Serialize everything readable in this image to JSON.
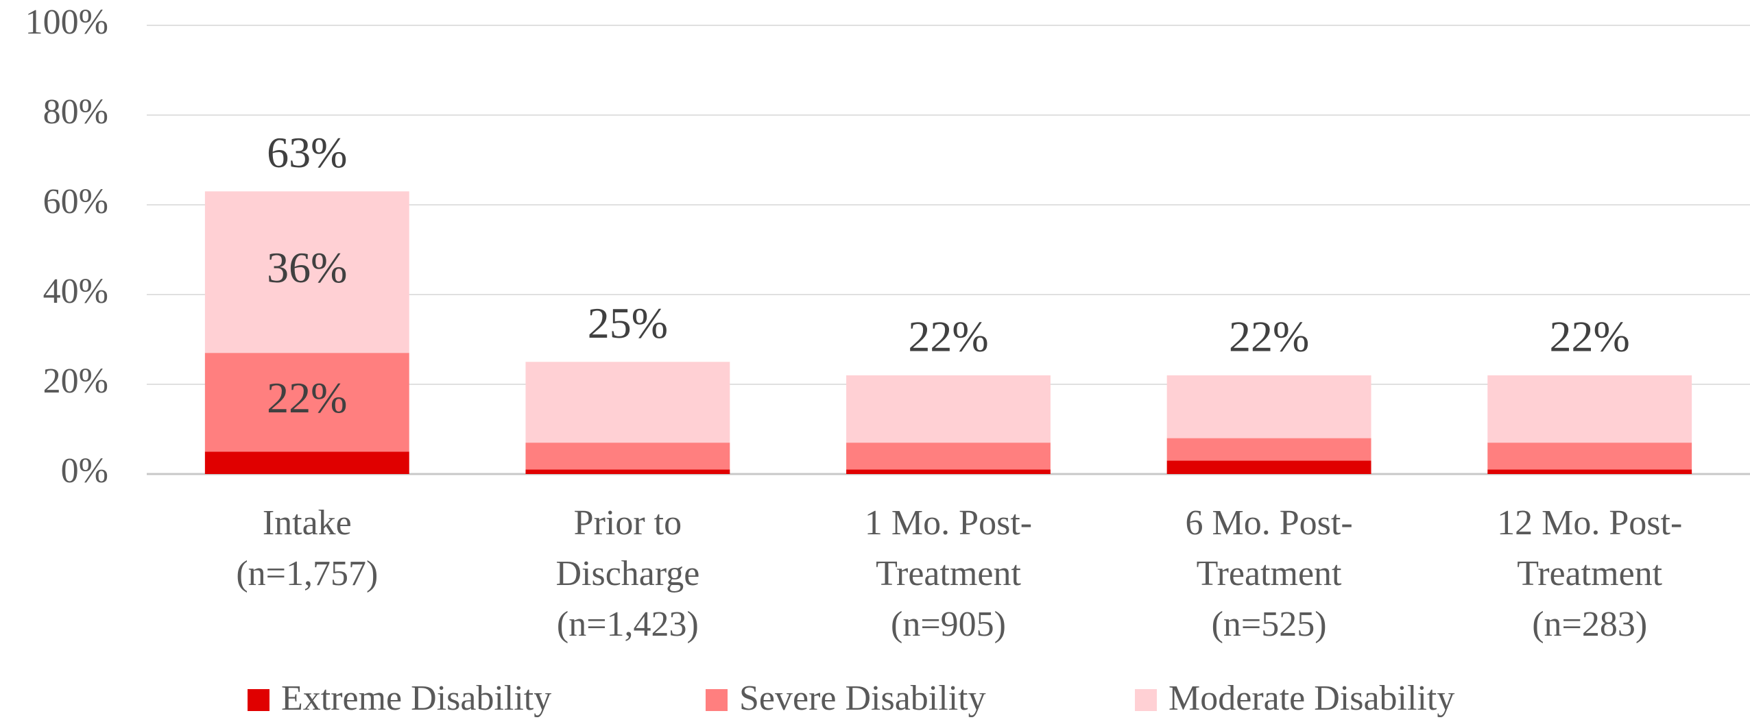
{
  "chart_data": {
    "type": "stacked_bar",
    "categories": [
      [
        "Intake",
        "(n=1,757)"
      ],
      [
        "Prior to",
        "Discharge",
        "(n=1,423)"
      ],
      [
        "1 Mo. Post-",
        "Treatment",
        "(n=905)"
      ],
      [
        "6 Mo. Post-",
        "Treatment",
        "(n=525)"
      ],
      [
        "12 Mo. Post-",
        "Treatment",
        "(n=283)"
      ]
    ],
    "series": [
      {
        "name": "Extreme Disability",
        "color": "#e00000",
        "values": [
          5,
          1,
          1,
          3,
          1
        ]
      },
      {
        "name": "Severe Disability",
        "color": "#ff7f7f",
        "values": [
          22,
          6,
          6,
          5,
          6
        ],
        "value_labels": [
          "22%",
          null,
          null,
          null,
          null
        ]
      },
      {
        "name": "Moderate Disability",
        "color": "#ffd0d4",
        "values": [
          36,
          18,
          15,
          14,
          15
        ],
        "value_labels": [
          "36%",
          null,
          null,
          null,
          null
        ]
      }
    ],
    "totals": [
      63,
      25,
      22,
      22,
      22
    ],
    "total_labels": [
      "63%",
      "25%",
      "22%",
      "22%",
      "22%"
    ],
    "ylim": [
      0,
      100
    ],
    "yticks": [
      {
        "value": 0,
        "label": "0%"
      },
      {
        "value": 20,
        "label": "20%"
      },
      {
        "value": 40,
        "label": "40%"
      },
      {
        "value": 60,
        "label": "60%"
      },
      {
        "value": 80,
        "label": "80%"
      },
      {
        "value": 100,
        "label": "100%"
      }
    ],
    "grid": true,
    "legend": "bottom"
  }
}
